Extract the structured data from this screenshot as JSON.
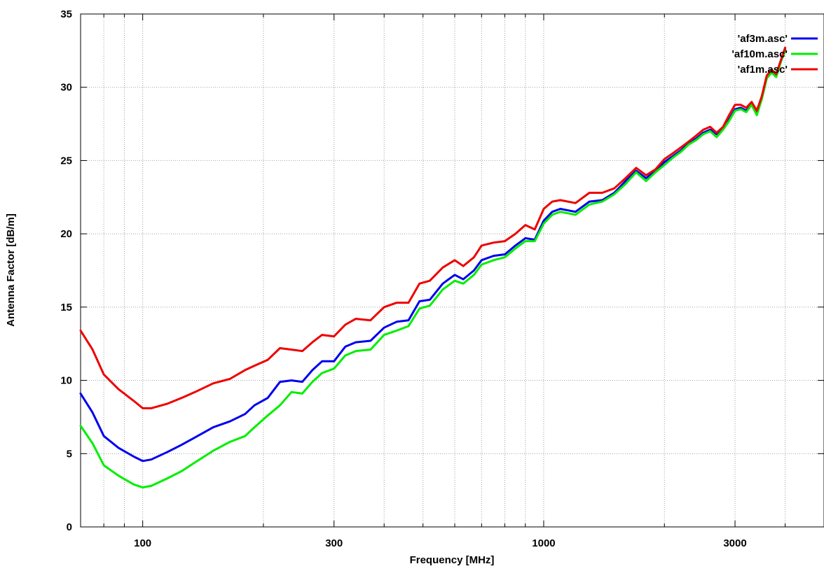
{
  "chart_data": {
    "type": "line",
    "title": "",
    "xlabel": "Frequency [MHz]",
    "ylabel": "Antenna Factor [dB/m]",
    "x_scale": "log",
    "xlim": [
      70,
      5000
    ],
    "ylim": [
      0,
      35
    ],
    "x_ticks": [
      100,
      300,
      1000,
      3000
    ],
    "x_tick_labels": [
      "100",
      "300",
      "1000",
      "3000"
    ],
    "y_ticks": [
      0,
      5,
      10,
      15,
      20,
      25,
      30,
      35
    ],
    "y_tick_labels": [
      "0",
      "5",
      "10",
      "15",
      "20",
      "25",
      "30",
      "35"
    ],
    "x_minor_ticks": [
      80,
      90,
      200,
      400,
      500,
      600,
      700,
      800,
      900,
      2000,
      4000
    ],
    "grid": true,
    "legend_position": "top-right",
    "series": [
      {
        "name": "'af3m.asc'",
        "color": "#0000ee",
        "points": [
          [
            70,
            9.1
          ],
          [
            75,
            7.8
          ],
          [
            80,
            6.2
          ],
          [
            87,
            5.4
          ],
          [
            95,
            4.8
          ],
          [
            100,
            4.5
          ],
          [
            105,
            4.6
          ],
          [
            115,
            5.1
          ],
          [
            125,
            5.6
          ],
          [
            135,
            6.1
          ],
          [
            150,
            6.8
          ],
          [
            165,
            7.2
          ],
          [
            180,
            7.7
          ],
          [
            190,
            8.3
          ],
          [
            205,
            8.8
          ],
          [
            220,
            9.9
          ],
          [
            235,
            10.0
          ],
          [
            250,
            9.9
          ],
          [
            265,
            10.7
          ],
          [
            280,
            11.3
          ],
          [
            300,
            11.3
          ],
          [
            320,
            12.3
          ],
          [
            340,
            12.6
          ],
          [
            370,
            12.7
          ],
          [
            400,
            13.6
          ],
          [
            430,
            14.0
          ],
          [
            460,
            14.1
          ],
          [
            490,
            15.4
          ],
          [
            520,
            15.5
          ],
          [
            560,
            16.6
          ],
          [
            600,
            17.2
          ],
          [
            630,
            16.9
          ],
          [
            670,
            17.5
          ],
          [
            700,
            18.2
          ],
          [
            750,
            18.5
          ],
          [
            800,
            18.6
          ],
          [
            850,
            19.2
          ],
          [
            900,
            19.7
          ],
          [
            950,
            19.6
          ],
          [
            1000,
            20.9
          ],
          [
            1050,
            21.5
          ],
          [
            1100,
            21.7
          ],
          [
            1200,
            21.5
          ],
          [
            1300,
            22.2
          ],
          [
            1400,
            22.3
          ],
          [
            1500,
            22.8
          ],
          [
            1600,
            23.6
          ],
          [
            1700,
            24.3
          ],
          [
            1800,
            23.8
          ],
          [
            1900,
            24.3
          ],
          [
            2000,
            24.9
          ],
          [
            2100,
            25.3
          ],
          [
            2200,
            25.7
          ],
          [
            2300,
            26.2
          ],
          [
            2400,
            26.5
          ],
          [
            2500,
            26.9
          ],
          [
            2600,
            27.1
          ],
          [
            2700,
            26.8
          ],
          [
            2800,
            27.2
          ],
          [
            2900,
            27.8
          ],
          [
            3000,
            28.5
          ],
          [
            3100,
            28.6
          ],
          [
            3200,
            28.4
          ],
          [
            3300,
            28.9
          ],
          [
            3400,
            28.2
          ],
          [
            3500,
            29.3
          ],
          [
            3600,
            30.7
          ],
          [
            3700,
            31.1
          ],
          [
            3800,
            30.8
          ],
          [
            3900,
            31.8
          ],
          [
            4000,
            32.6
          ]
        ]
      },
      {
        "name": "'af10m.asc'",
        "color": "#00ee00",
        "points": [
          [
            70,
            6.9
          ],
          [
            75,
            5.7
          ],
          [
            80,
            4.2
          ],
          [
            87,
            3.5
          ],
          [
            95,
            2.9
          ],
          [
            100,
            2.7
          ],
          [
            105,
            2.8
          ],
          [
            115,
            3.3
          ],
          [
            125,
            3.8
          ],
          [
            135,
            4.4
          ],
          [
            150,
            5.2
          ],
          [
            165,
            5.8
          ],
          [
            180,
            6.2
          ],
          [
            190,
            6.8
          ],
          [
            205,
            7.6
          ],
          [
            220,
            8.3
          ],
          [
            235,
            9.2
          ],
          [
            250,
            9.1
          ],
          [
            265,
            9.9
          ],
          [
            280,
            10.5
          ],
          [
            300,
            10.8
          ],
          [
            320,
            11.7
          ],
          [
            340,
            12.0
          ],
          [
            370,
            12.1
          ],
          [
            400,
            13.1
          ],
          [
            430,
            13.4
          ],
          [
            460,
            13.7
          ],
          [
            490,
            14.9
          ],
          [
            520,
            15.1
          ],
          [
            560,
            16.2
          ],
          [
            600,
            16.8
          ],
          [
            630,
            16.6
          ],
          [
            670,
            17.2
          ],
          [
            700,
            17.9
          ],
          [
            750,
            18.2
          ],
          [
            800,
            18.4
          ],
          [
            850,
            19.0
          ],
          [
            900,
            19.5
          ],
          [
            950,
            19.5
          ],
          [
            1000,
            20.7
          ],
          [
            1050,
            21.3
          ],
          [
            1100,
            21.5
          ],
          [
            1200,
            21.3
          ],
          [
            1300,
            22.0
          ],
          [
            1400,
            22.2
          ],
          [
            1500,
            22.7
          ],
          [
            1600,
            23.4
          ],
          [
            1700,
            24.2
          ],
          [
            1800,
            23.6
          ],
          [
            1900,
            24.2
          ],
          [
            2000,
            24.7
          ],
          [
            2100,
            25.2
          ],
          [
            2200,
            25.6
          ],
          [
            2300,
            26.1
          ],
          [
            2400,
            26.4
          ],
          [
            2500,
            26.8
          ],
          [
            2600,
            27.0
          ],
          [
            2700,
            26.6
          ],
          [
            2800,
            27.1
          ],
          [
            2900,
            27.7
          ],
          [
            3000,
            28.4
          ],
          [
            3100,
            28.5
          ],
          [
            3200,
            28.3
          ],
          [
            3300,
            28.8
          ],
          [
            3400,
            28.1
          ],
          [
            3500,
            29.2
          ],
          [
            3600,
            30.6
          ],
          [
            3700,
            31.0
          ],
          [
            3800,
            30.7
          ],
          [
            3900,
            31.7
          ],
          [
            4000,
            32.5
          ]
        ]
      },
      {
        "name": "'af1m.asc'",
        "color": "#ee0000",
        "points": [
          [
            70,
            13.4
          ],
          [
            75,
            12.1
          ],
          [
            80,
            10.4
          ],
          [
            87,
            9.4
          ],
          [
            95,
            8.6
          ],
          [
            100,
            8.1
          ],
          [
            105,
            8.1
          ],
          [
            115,
            8.4
          ],
          [
            125,
            8.8
          ],
          [
            135,
            9.2
          ],
          [
            150,
            9.8
          ],
          [
            165,
            10.1
          ],
          [
            180,
            10.7
          ],
          [
            190,
            11.0
          ],
          [
            205,
            11.4
          ],
          [
            220,
            12.2
          ],
          [
            235,
            12.1
          ],
          [
            250,
            12.0
          ],
          [
            265,
            12.6
          ],
          [
            280,
            13.1
          ],
          [
            300,
            13.0
          ],
          [
            320,
            13.8
          ],
          [
            340,
            14.2
          ],
          [
            370,
            14.1
          ],
          [
            400,
            15.0
          ],
          [
            430,
            15.3
          ],
          [
            460,
            15.3
          ],
          [
            490,
            16.6
          ],
          [
            520,
            16.8
          ],
          [
            560,
            17.7
          ],
          [
            600,
            18.2
          ],
          [
            630,
            17.8
          ],
          [
            670,
            18.4
          ],
          [
            700,
            19.2
          ],
          [
            750,
            19.4
          ],
          [
            800,
            19.5
          ],
          [
            850,
            20.0
          ],
          [
            900,
            20.6
          ],
          [
            950,
            20.3
          ],
          [
            1000,
            21.7
          ],
          [
            1050,
            22.2
          ],
          [
            1100,
            22.3
          ],
          [
            1200,
            22.1
          ],
          [
            1300,
            22.8
          ],
          [
            1400,
            22.8
          ],
          [
            1500,
            23.1
          ],
          [
            1600,
            23.8
          ],
          [
            1700,
            24.5
          ],
          [
            1800,
            24.0
          ],
          [
            1900,
            24.4
          ],
          [
            2000,
            25.1
          ],
          [
            2100,
            25.5
          ],
          [
            2200,
            25.9
          ],
          [
            2300,
            26.3
          ],
          [
            2400,
            26.7
          ],
          [
            2500,
            27.1
          ],
          [
            2600,
            27.3
          ],
          [
            2700,
            26.9
          ],
          [
            2800,
            27.3
          ],
          [
            2900,
            28.1
          ],
          [
            3000,
            28.8
          ],
          [
            3100,
            28.8
          ],
          [
            3200,
            28.6
          ],
          [
            3300,
            29.0
          ],
          [
            3400,
            28.4
          ],
          [
            3500,
            29.4
          ],
          [
            3600,
            30.8
          ],
          [
            3700,
            31.2
          ],
          [
            3800,
            30.9
          ],
          [
            3900,
            31.8
          ],
          [
            4000,
            32.7
          ]
        ]
      }
    ]
  }
}
